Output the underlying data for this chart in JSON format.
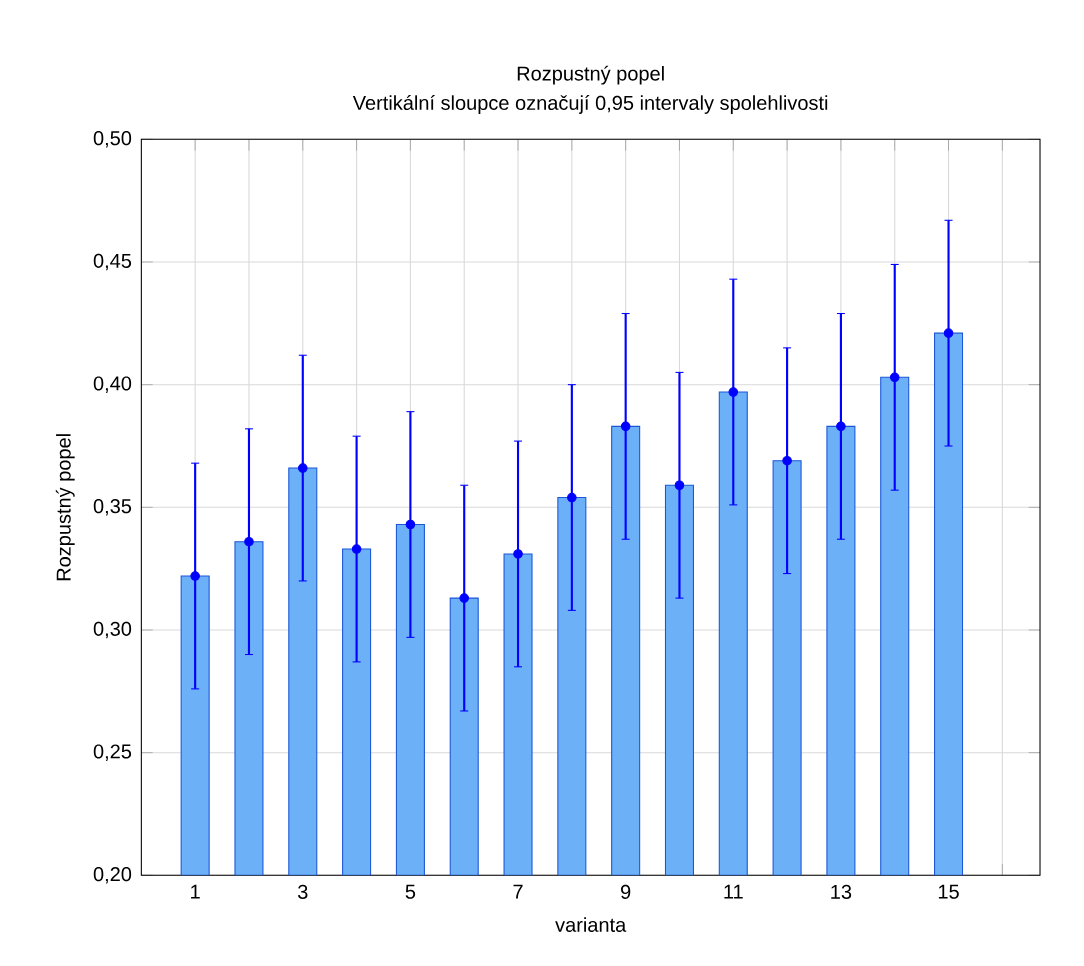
{
  "chart_data": {
    "type": "bar",
    "title": "Rozpustný popel",
    "subtitle": "Vertikální sloupce označují 0,95 intervaly spolehlivosti",
    "xlabel": "varianta",
    "ylabel": "Rozpustný popel",
    "x": [
      1,
      2,
      3,
      4,
      5,
      6,
      7,
      8,
      9,
      10,
      11,
      12,
      13,
      14,
      15
    ],
    "series": [
      {
        "color": "#6cb0f8",
        "values": [
          0.322,
          0.336,
          0.366,
          0.333,
          0.343,
          0.313,
          0.331,
          0.354,
          0.383,
          0.359,
          0.397,
          0.369,
          0.383,
          0.403,
          0.421
        ]
      },
      {
        "type": "scatter",
        "color": "#0000ff",
        "marker": "circle",
        "values": [
          0.322,
          0.336,
          0.366,
          0.333,
          0.343,
          0.313,
          0.331,
          0.354,
          0.383,
          0.359,
          0.397,
          0.369,
          0.383,
          0.403,
          0.421
        ],
        "errors": [
          0.046,
          0.046,
          0.046,
          0.046,
          0.046,
          0.046,
          0.046,
          0.046,
          0.046,
          0.046,
          0.046,
          0.046,
          0.046,
          0.046,
          0.046
        ]
      }
    ],
    "grid": true,
    "xlim": [
      0,
      16.7
    ],
    "xticks": [
      {
        "value": 1,
        "label": "1"
      },
      {
        "value": 2,
        "label": null
      },
      {
        "value": 3,
        "label": "3"
      },
      {
        "value": 4,
        "label": null
      },
      {
        "value": 5,
        "label": "5"
      },
      {
        "value": 6,
        "label": null
      },
      {
        "value": 7,
        "label": "7"
      },
      {
        "value": 8,
        "label": null
      },
      {
        "value": 9,
        "label": "9"
      },
      {
        "value": 10,
        "label": null
      },
      {
        "value": 11,
        "label": "11"
      },
      {
        "value": 12,
        "label": null
      },
      {
        "value": 13,
        "label": "13"
      },
      {
        "value": 14,
        "label": null
      },
      {
        "value": 15,
        "label": "15"
      },
      {
        "value": 16,
        "label": null
      }
    ],
    "ylim": [
      0.2,
      0.5
    ],
    "yticks": [
      {
        "value": 0.2,
        "label": "0,20"
      },
      {
        "value": 0.25,
        "label": "0,25"
      },
      {
        "value": 0.3,
        "label": "0,30"
      },
      {
        "value": 0.35,
        "label": "0,35"
      },
      {
        "value": 0.4,
        "label": "0,40"
      },
      {
        "value": 0.45,
        "label": "0,45"
      },
      {
        "value": 0.5,
        "label": "0,50"
      }
    ]
  }
}
